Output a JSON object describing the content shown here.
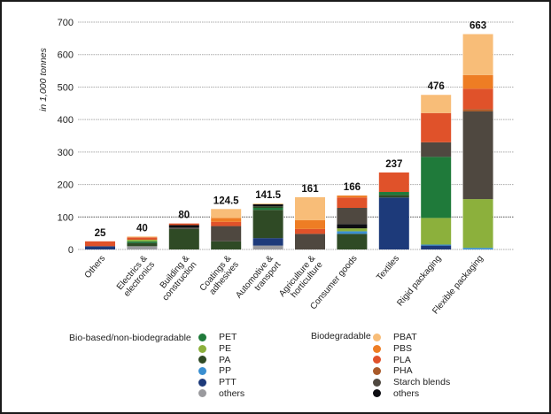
{
  "chart_data": {
    "type": "bar",
    "stacked": true,
    "title": "",
    "xlabel": "",
    "ylabel": "in 1,000 tonnes",
    "ylim": [
      0,
      700
    ],
    "yticks": [
      0,
      100,
      200,
      300,
      400,
      500,
      600,
      700
    ],
    "grid": true,
    "categories": [
      [
        "Others"
      ],
      [
        "Electrics &",
        "electronics"
      ],
      [
        "Building &",
        "construction"
      ],
      [
        "Coatings &",
        "adhesives"
      ],
      [
        "Automotive &",
        "transport"
      ],
      [
        "Agriculture &",
        "horticulture"
      ],
      [
        "Consumer goods"
      ],
      [
        "Textiles"
      ],
      [
        "Rigid packaging"
      ],
      [
        "Flexible packaging"
      ]
    ],
    "totals": [
      "25",
      "40",
      "80",
      "124.5",
      "141.5",
      "161",
      "166",
      "237",
      "476",
      "663"
    ],
    "stacks": [
      [
        [
          "PTT",
          10
        ],
        [
          "PLA",
          15
        ]
      ],
      [
        [
          "bio_others",
          10
        ],
        [
          "PA",
          10
        ],
        [
          "PET",
          5
        ],
        [
          "PE",
          5
        ],
        [
          "PLA",
          7
        ],
        [
          "PBAT",
          3
        ]
      ],
      [
        [
          "PA",
          63
        ],
        [
          "Starch blends",
          5
        ],
        [
          "bio_deg_others",
          7
        ],
        [
          "PLA",
          5
        ]
      ],
      [
        [
          "PA",
          25
        ],
        [
          "Starch blends",
          47
        ],
        [
          "PLA",
          13
        ],
        [
          "PBS",
          12
        ],
        [
          "PBAT",
          27.5
        ]
      ],
      [
        [
          "bio_others",
          12
        ],
        [
          "PTT",
          23
        ],
        [
          "PA",
          87
        ],
        [
          "PET",
          6
        ],
        [
          "PA",
          5
        ],
        [
          "bio_deg_others",
          6
        ],
        [
          "PBAT",
          2.5
        ]
      ],
      [
        [
          "Starch blends",
          48
        ],
        [
          "PLA",
          15
        ],
        [
          "PBS",
          27
        ],
        [
          "PBAT",
          71
        ]
      ],
      [
        [
          "PA",
          48
        ],
        [
          "PP",
          8
        ],
        [
          "PE",
          9
        ],
        [
          "bio_deg_others",
          13
        ],
        [
          "Starch blends",
          50
        ],
        [
          "PLA",
          32
        ],
        [
          "PBS",
          6
        ]
      ],
      [
        [
          "PTT",
          160
        ],
        [
          "PA",
          8
        ],
        [
          "PET",
          9
        ],
        [
          "PLA",
          60
        ]
      ],
      [
        [
          "PTT",
          12
        ],
        [
          "PP",
          3
        ],
        [
          "PE",
          82
        ],
        [
          "PET",
          188
        ],
        [
          "Starch blends",
          45
        ],
        [
          "PLA",
          90
        ],
        [
          "PBAT",
          56
        ]
      ],
      [
        [
          "PP",
          5
        ],
        [
          "PE",
          150
        ],
        [
          "Starch blends",
          270
        ],
        [
          "PHA",
          7
        ],
        [
          "PLA",
          63
        ],
        [
          "PBS",
          42
        ],
        [
          "PBAT",
          126
        ]
      ]
    ],
    "colors": {
      "PET": "#1f7a3a",
      "PE": "#8cb03c",
      "PA": "#2f4a25",
      "PP": "#3a8fd1",
      "PTT": "#1d3a7a",
      "bio_others": "#9a9a9e",
      "PBAT": "#f8bd78",
      "PBS": "#ee7d24",
      "PLA": "#e0522a",
      "PHA": "#a95a2a",
      "Starch blends": "#4f4840",
      "bio_deg_others": "#0d0d12"
    },
    "legend": {
      "placement": "bottom",
      "groups": [
        {
          "title": "Bio-based/non-biodegradable",
          "items": [
            {
              "key": "PET",
              "label": "PET"
            },
            {
              "key": "PE",
              "label": "PE"
            },
            {
              "key": "PA",
              "label": "PA"
            },
            {
              "key": "PP",
              "label": "PP"
            },
            {
              "key": "PTT",
              "label": "PTT"
            },
            {
              "key": "bio_others",
              "label": "others"
            }
          ]
        },
        {
          "title": "Biodegradable",
          "items": [
            {
              "key": "PBAT",
              "label": "PBAT"
            },
            {
              "key": "PBS",
              "label": "PBS"
            },
            {
              "key": "PLA",
              "label": "PLA"
            },
            {
              "key": "PHA",
              "label": "PHA"
            },
            {
              "key": "Starch blends",
              "label": "Starch blends"
            },
            {
              "key": "bio_deg_others",
              "label": "others"
            }
          ]
        }
      ]
    }
  }
}
